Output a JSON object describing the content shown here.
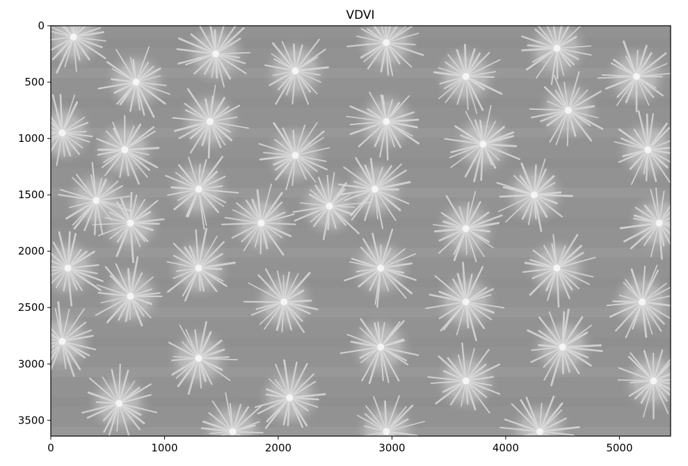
{
  "chart_data": {
    "type": "heatmap",
    "title": "VDVI",
    "colormap": "gray",
    "image_description": "grayscale VDVI index image of rows of spiky rosette plants",
    "xlim": [
      0,
      5450
    ],
    "ylim": [
      3640,
      0
    ],
    "x_ticks": [
      {
        "value": 0,
        "label": "0"
      },
      {
        "value": 1000,
        "label": "1000"
      },
      {
        "value": 2000,
        "label": "2000"
      },
      {
        "value": 3000,
        "label": "3000"
      },
      {
        "value": 4000,
        "label": "4000"
      },
      {
        "value": 5000,
        "label": "5000"
      }
    ],
    "y_ticks": [
      {
        "value": 0,
        "label": "0"
      },
      {
        "value": 500,
        "label": "500"
      },
      {
        "value": 1000,
        "label": "1000"
      },
      {
        "value": 1500,
        "label": "1500"
      },
      {
        "value": 2000,
        "label": "2000"
      },
      {
        "value": 2500,
        "label": "2500"
      },
      {
        "value": 3000,
        "label": "3000"
      },
      {
        "value": 3500,
        "label": "3500"
      }
    ],
    "plants": [
      {
        "x": 200,
        "y": 100
      },
      {
        "x": 750,
        "y": 500
      },
      {
        "x": 1450,
        "y": 250
      },
      {
        "x": 2150,
        "y": 400
      },
      {
        "x": 2950,
        "y": 150
      },
      {
        "x": 3650,
        "y": 450
      },
      {
        "x": 4450,
        "y": 200
      },
      {
        "x": 5150,
        "y": 450
      },
      {
        "x": 100,
        "y": 950
      },
      {
        "x": 650,
        "y": 1100
      },
      {
        "x": 1400,
        "y": 850
      },
      {
        "x": 2150,
        "y": 1150
      },
      {
        "x": 2950,
        "y": 850
      },
      {
        "x": 3800,
        "y": 1050
      },
      {
        "x": 4550,
        "y": 750
      },
      {
        "x": 5250,
        "y": 1100
      },
      {
        "x": 400,
        "y": 1550
      },
      {
        "x": 700,
        "y": 1750
      },
      {
        "x": 1300,
        "y": 1450
      },
      {
        "x": 1850,
        "y": 1750
      },
      {
        "x": 2450,
        "y": 1600
      },
      {
        "x": 2850,
        "y": 1450
      },
      {
        "x": 3650,
        "y": 1800
      },
      {
        "x": 4250,
        "y": 1500
      },
      {
        "x": 5350,
        "y": 1750
      },
      {
        "x": 150,
        "y": 2150
      },
      {
        "x": 700,
        "y": 2400
      },
      {
        "x": 1300,
        "y": 2150
      },
      {
        "x": 2050,
        "y": 2450
      },
      {
        "x": 2900,
        "y": 2150
      },
      {
        "x": 3650,
        "y": 2450
      },
      {
        "x": 4450,
        "y": 2150
      },
      {
        "x": 5200,
        "y": 2450
      },
      {
        "x": 100,
        "y": 2800
      },
      {
        "x": 600,
        "y": 3350
      },
      {
        "x": 1300,
        "y": 2950
      },
      {
        "x": 2100,
        "y": 3300
      },
      {
        "x": 2900,
        "y": 2850
      },
      {
        "x": 3650,
        "y": 3150
      },
      {
        "x": 4500,
        "y": 2850
      },
      {
        "x": 5300,
        "y": 3150
      },
      {
        "x": 1600,
        "y": 3600
      },
      {
        "x": 2950,
        "y": 3600
      },
      {
        "x": 4300,
        "y": 3600
      }
    ]
  }
}
